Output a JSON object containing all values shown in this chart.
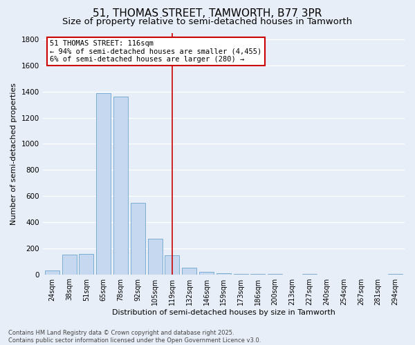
{
  "title1": "51, THOMAS STREET, TAMWORTH, B77 3PR",
  "title2": "Size of property relative to semi-detached houses in Tamworth",
  "xlabel": "Distribution of semi-detached houses by size in Tamworth",
  "ylabel": "Number of semi-detached properties",
  "categories": [
    "24sqm",
    "38sqm",
    "51sqm",
    "65sqm",
    "78sqm",
    "92sqm",
    "105sqm",
    "119sqm",
    "132sqm",
    "146sqm",
    "159sqm",
    "173sqm",
    "186sqm",
    "200sqm",
    "213sqm",
    "227sqm",
    "240sqm",
    "254sqm",
    "267sqm",
    "281sqm",
    "294sqm"
  ],
  "values": [
    30,
    150,
    155,
    1390,
    1360,
    550,
    270,
    145,
    50,
    20,
    10,
    5,
    2,
    2,
    0,
    5,
    0,
    0,
    0,
    0,
    5
  ],
  "bar_color": "#c5d8f0",
  "bar_edge_color": "#7aadd4",
  "highlight_bar_index": 7,
  "vline_x": 7,
  "vline_color": "#cc0000",
  "annotation_title": "51 THOMAS STREET: 116sqm",
  "annotation_line1": "← 94% of semi-detached houses are smaller (4,455)",
  "annotation_line2": "6% of semi-detached houses are larger (280) →",
  "annotation_box_edge_color": "#cc0000",
  "ylim_max": 1850,
  "yticks": [
    0,
    200,
    400,
    600,
    800,
    1000,
    1200,
    1400,
    1600,
    1800
  ],
  "bg_color": "#e8eef8",
  "grid_color": "#ffffff",
  "footer1": "Contains HM Land Registry data © Crown copyright and database right 2025.",
  "footer2": "Contains public sector information licensed under the Open Government Licence v3.0.",
  "title_fontsize": 11,
  "subtitle_fontsize": 9.5,
  "anno_fontsize": 7.5,
  "xlabel_fontsize": 8,
  "ylabel_fontsize": 8
}
